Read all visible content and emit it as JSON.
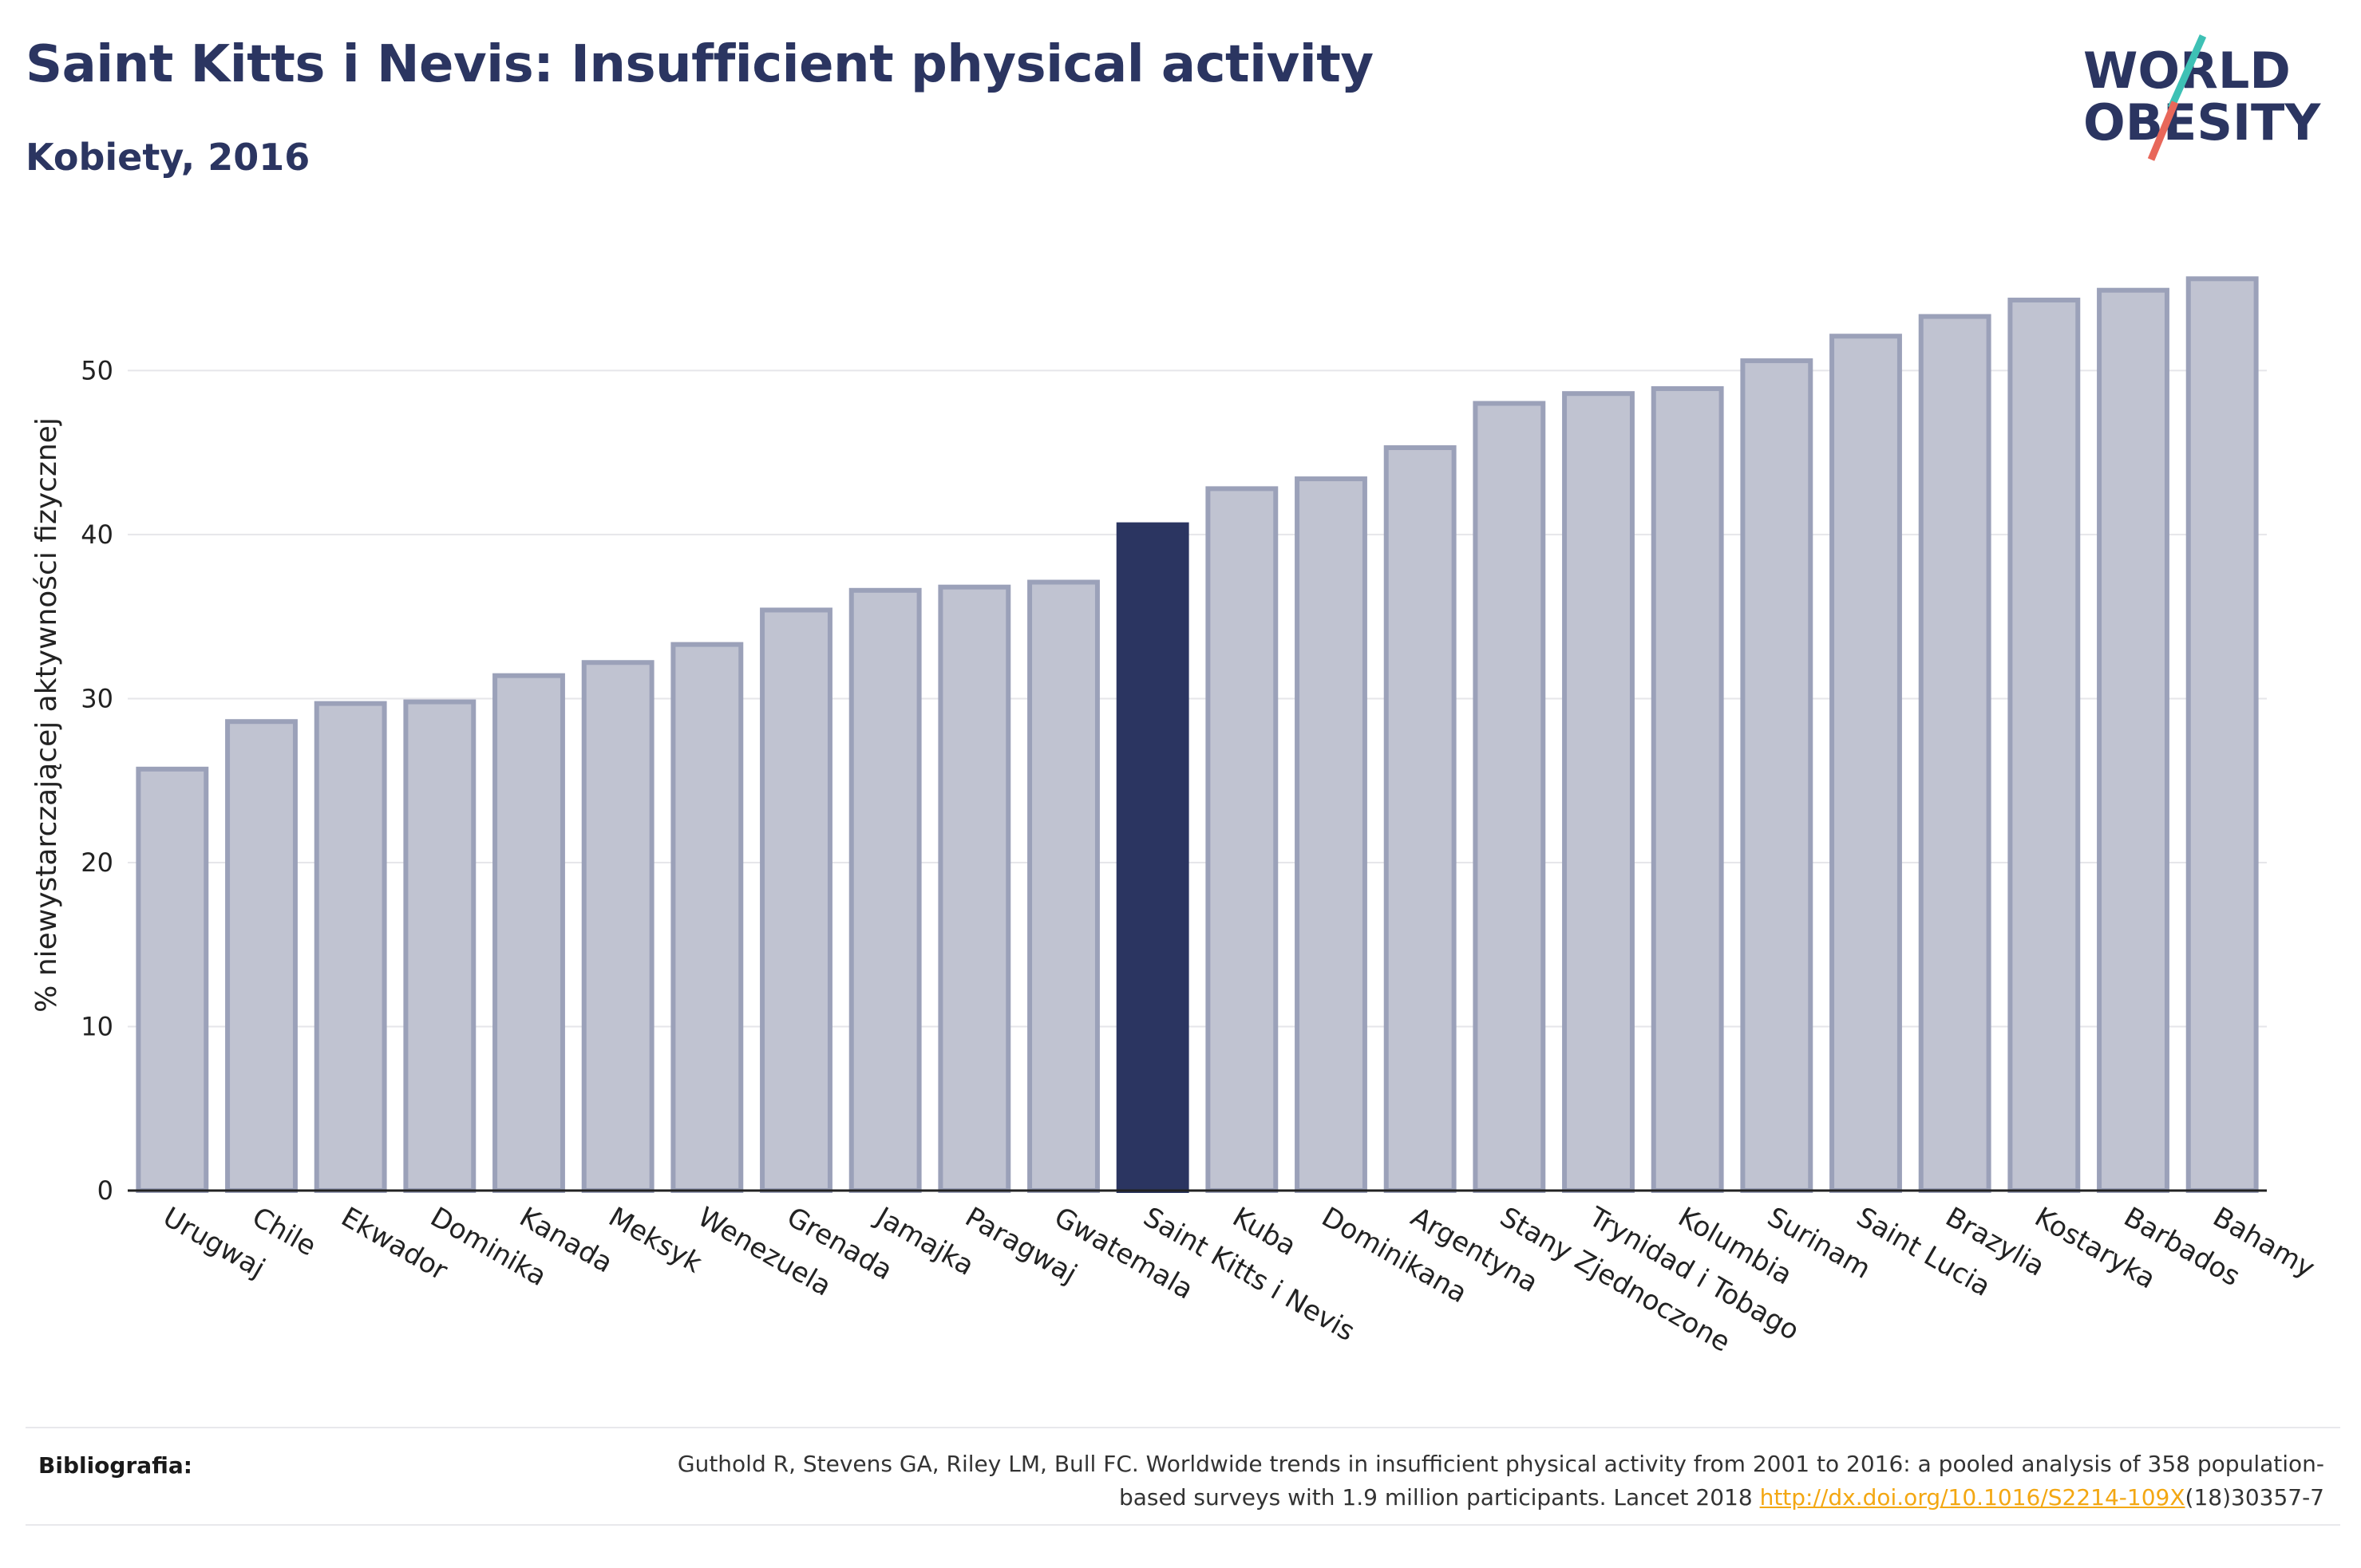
{
  "title": "Saint Kitts i Nevis: Insufficient physical activity",
  "subtitle": "Kobiety, 2016",
  "logo": {
    "line1": "WORLD",
    "line2": "OBESITY",
    "accent_colors": [
      "#3ec1b5",
      "#e8675a"
    ]
  },
  "colors": {
    "bar": "#c0c3d1",
    "bar_edge": "#9ba1b9",
    "highlight": "#2b3561",
    "text": "#2b3561"
  },
  "chart_data": {
    "type": "bar",
    "ylabel": "% niewystarczającej aktywności fizycznej",
    "xlabel": "",
    "ylim": [
      0,
      58
    ],
    "yticks": [
      0,
      10,
      20,
      30,
      40,
      50
    ],
    "grid": true,
    "highlight": "Saint Kitts i Nevis",
    "categories": [
      "Urugwaj",
      "Chile",
      "Ekwador",
      "Dominika",
      "Kanada",
      "Meksyk",
      "Wenezuela",
      "Grenada",
      "Jamajka",
      "Paragwaj",
      "Gwatemala",
      "Saint Kitts i Nevis",
      "Kuba",
      "Dominikana",
      "Argentyna",
      "Stany Zjednoczone",
      "Trynidad i Tobago",
      "Kolumbia",
      "Surinam",
      "Saint Lucia",
      "Brazylia",
      "Kostaryka",
      "Barbados",
      "Bahamy"
    ],
    "values": [
      25.7,
      28.6,
      29.7,
      29.8,
      31.4,
      32.2,
      33.3,
      35.4,
      36.6,
      36.8,
      37.1,
      40.6,
      42.8,
      43.4,
      45.3,
      48.0,
      48.6,
      48.9,
      50.6,
      52.1,
      53.3,
      54.3,
      54.9,
      55.6
    ]
  },
  "bibliography": {
    "label": "Bibliografia:",
    "text_before": "Guthold R, Stevens GA, Riley LM, Bull FC. Worldwide trends in insufficient physical activity from 2001 to 2016: a pooled analysis of 358 population-based surveys with 1.9 million participants. Lancet 2018 ",
    "link": "http://dx.doi.org/10.1016/S2214-109X",
    "text_after": "(18)30357-7"
  }
}
